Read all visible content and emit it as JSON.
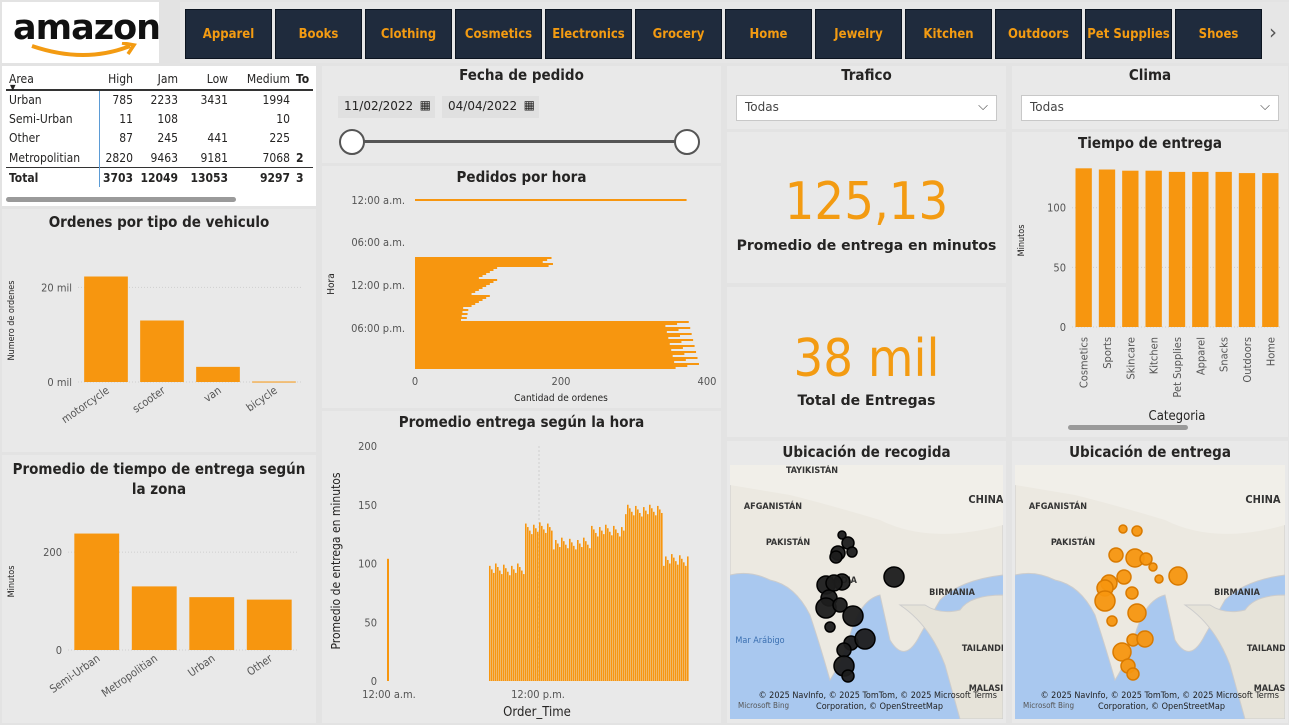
{
  "logo": {
    "text": "amazon"
  },
  "nav": {
    "items": [
      "Apparel",
      "Books",
      "Clothing",
      "Cosmetics",
      "Electronics",
      "Grocery",
      "Home",
      "Jewelry",
      "Kitchen",
      "Outdoors",
      "Pet Supplies",
      "Shoes"
    ],
    "next_icon": "chevron-right-icon"
  },
  "matrix": {
    "corner": "Area",
    "columns": [
      "High",
      "Jam",
      "Low",
      "Medium",
      "To"
    ],
    "rows": [
      {
        "area": "Urban",
        "high": "785",
        "jam": "2233",
        "low": "3431",
        "medium": "1994",
        "t": ""
      },
      {
        "area": "Semi-Urban",
        "high": "11",
        "jam": "108",
        "low": "",
        "medium": "10",
        "t": ""
      },
      {
        "area": "Other",
        "high": "87",
        "jam": "245",
        "low": "441",
        "medium": "225",
        "t": ""
      },
      {
        "area": "Metropolitian",
        "high": "2820",
        "jam": "9463",
        "low": "9181",
        "medium": "7068",
        "t": "2"
      }
    ],
    "total": {
      "area": "Total",
      "high": "3703",
      "jam": "12049",
      "low": "13053",
      "medium": "9297",
      "t": "3"
    }
  },
  "date_filter": {
    "title": "Fecha de pedido",
    "start": "11/02/2022",
    "end": "04/04/2022"
  },
  "trafico": {
    "title": "Trafico",
    "value": "Todas"
  },
  "clima": {
    "title": "Clima",
    "value": "Todas"
  },
  "kpi_avg": {
    "value": "125,13",
    "label": "Promedio de entrega en minutos"
  },
  "kpi_total": {
    "value": "38 mil",
    "label": "Total de Entregas"
  },
  "map_pickup": {
    "title": "Ubicación de recogida",
    "labels": [
      "TAYIKISTÁN",
      "AFGANISTÁN",
      "PAKISTÁN",
      "CHINA",
      "INDIA",
      "BIRMANIA",
      "Mar Arábigo",
      "TAILANDIA",
      "MALASI"
    ],
    "copyright": "© 2025 NavInfo, © 2025 TomTom, © 2025 Microsoft",
    "corp": "Corporation,",
    "osm": "© OpenStreetMap",
    "terms": "Terms",
    "bing": "Microsoft Bing"
  },
  "map_delivery": {
    "title": "Ubicación de entrega",
    "labels": [
      "AFGANISTÁN",
      "PAKISTÁN",
      "CHINA",
      "BIRMANIA",
      "TAILANDIA",
      "MALASI"
    ],
    "copyright": "© 2025 NavInfo, © 2025 TomTom, © 2025 Microsoft",
    "corp": "Corporation,",
    "osm": "© OpenStreetMap",
    "terms": "Terms",
    "bing": "Microsoft Bing"
  },
  "chart_data": [
    {
      "id": "vehicle",
      "type": "bar",
      "title": "Ordenes por tipo de vehiculo",
      "ylabel": "Numero de ordenes",
      "categories": [
        "motorcycle",
        "scooter",
        "van",
        "bicycle"
      ],
      "values": [
        22300,
        13000,
        3200,
        100
      ],
      "ylim": [
        0,
        26000
      ],
      "yticks": [
        {
          "v": 0,
          "label": "0 mil"
        },
        {
          "v": 20000,
          "label": "20 mil"
        }
      ],
      "color": "#f7960f"
    },
    {
      "id": "zone",
      "type": "bar",
      "title": "Promedio de tiempo de entrega según la zona",
      "ylabel": "Minutos",
      "categories": [
        "Semi-Urban",
        "Metropolitian",
        "Urban",
        "Other"
      ],
      "values": [
        238,
        130,
        108,
        103
      ],
      "ylim": [
        0,
        280
      ],
      "yticks": [
        {
          "v": 0,
          "label": "0"
        },
        {
          "v": 200,
          "label": "200"
        }
      ],
      "color": "#f7960f"
    },
    {
      "id": "hour",
      "type": "bar",
      "title": "Pedidos por hora",
      "xlabel": "Cantidad de ordenes",
      "ylabel": "Hora",
      "orientation": "horizontal",
      "xlim": [
        0,
        400
      ],
      "xticks": [
        {
          "v": 0,
          "label": "0"
        },
        {
          "v": 200,
          "label": "200"
        },
        {
          "v": 400,
          "label": "400"
        }
      ],
      "yticks": [
        "12:00 a.m.",
        "06:00 a.m.",
        "12:00 p.m.",
        "06:00 p.m."
      ],
      "color": "#f7960f"
    },
    {
      "id": "avghour",
      "type": "bar",
      "title": "Promedio entrega según la hora",
      "xlabel": "Order_Time",
      "ylabel": "Promedio de entrega en minutos",
      "ylim": [
        0,
        200
      ],
      "yticks": [
        0,
        50,
        100,
        150,
        200
      ],
      "xticks": [
        "12:00 a.m.",
        "12:00 p.m."
      ],
      "color": "#f7960f"
    },
    {
      "id": "category",
      "type": "bar",
      "title": "Tiempo de entrega",
      "xlabel": "Categoria",
      "ylabel": "Minutos",
      "categories": [
        "Cosmetics",
        "Sports",
        "Skincare",
        "Kitchen",
        "Pet Supplies",
        "Apparel",
        "Snacks",
        "Outdoors",
        "Home"
      ],
      "values": [
        133,
        132,
        131,
        131,
        130,
        130,
        130,
        129,
        129
      ],
      "ylim": [
        0,
        145
      ],
      "yticks": [
        0,
        50,
        100
      ],
      "color": "#f7960f"
    }
  ]
}
